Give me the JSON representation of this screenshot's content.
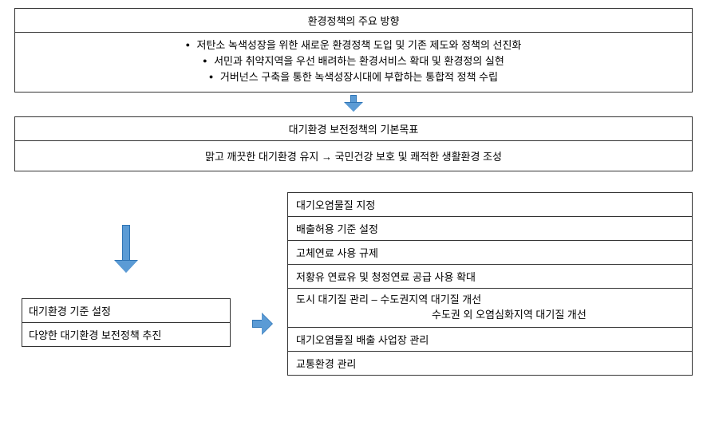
{
  "top": {
    "title": "환경정책의 주요 방향",
    "bullets": [
      "저탄소 녹색성장을 위한 새로운 환경정책 도입 및 기존 제도와 정책의 선진화",
      "서민과 취약지역을 우선 배려하는 환경서비스 확대 및 환경정의 실현",
      "거버넌스 구축을 통한 녹색성장시대에 부합하는 통합적 정책 수립"
    ]
  },
  "mid": {
    "title": "대기환경 보전정책의 기본목표",
    "content": "맑고 깨끗한 대기환경 유지 → 국민건강 보호 및 쾌적한 생활환경 조성"
  },
  "left": {
    "rows": [
      "대기환경 기준 설정",
      "다양한 대기환경 보전정책 추진"
    ]
  },
  "right": {
    "rows": [
      "대기오염물질 지정",
      "배출허용 기준 설정",
      "고체연료 사용 규제",
      "저황유 연료유 및 청정연료 공급 사용 확대",
      "도시 대기질 관리 – 수도권지역 대기질 개선",
      "수도권 외 오염심화지역 대기질 개선",
      "대기오염물질 배출 사업장 관리",
      "교통환경 관리"
    ]
  },
  "style": {
    "arrow_fill": "#5b9bd5",
    "arrow_border": "#2e74b5",
    "border_color": "#333333",
    "background": "#ffffff",
    "font_family": "Malgun Gothic",
    "font_size_pt": 10
  }
}
